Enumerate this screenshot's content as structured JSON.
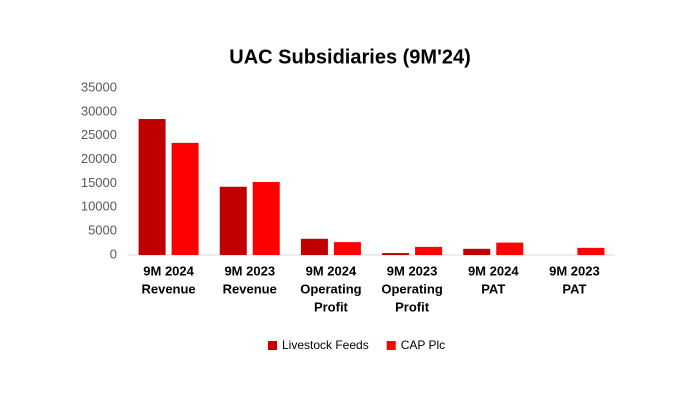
{
  "chart_data": {
    "type": "bar",
    "title": "UAC Subsidiaries (9M'24)",
    "categories": [
      [
        "9M 2024",
        "Revenue"
      ],
      [
        "9M 2023",
        "Revenue"
      ],
      [
        "9M 2024",
        "Operating",
        "Profit"
      ],
      [
        "9M 2023",
        "Operating",
        "Profit"
      ],
      [
        "9M 2024",
        "PAT"
      ],
      [
        "9M 2023",
        "PAT"
      ]
    ],
    "series": [
      {
        "name": "Livestock Feeds",
        "color": "#c00000",
        "values": [
          28500,
          14300,
          3400,
          400,
          1300,
          0
        ]
      },
      {
        "name": "CAP Plc",
        "color": "#ff0000",
        "values": [
          23500,
          15300,
          2700,
          1700,
          2600,
          1500
        ]
      }
    ],
    "ylim": [
      0,
      35000
    ],
    "yticks": [
      0,
      5000,
      10000,
      15000,
      20000,
      25000,
      30000,
      35000
    ],
    "grid": false,
    "legend": "bottom"
  }
}
